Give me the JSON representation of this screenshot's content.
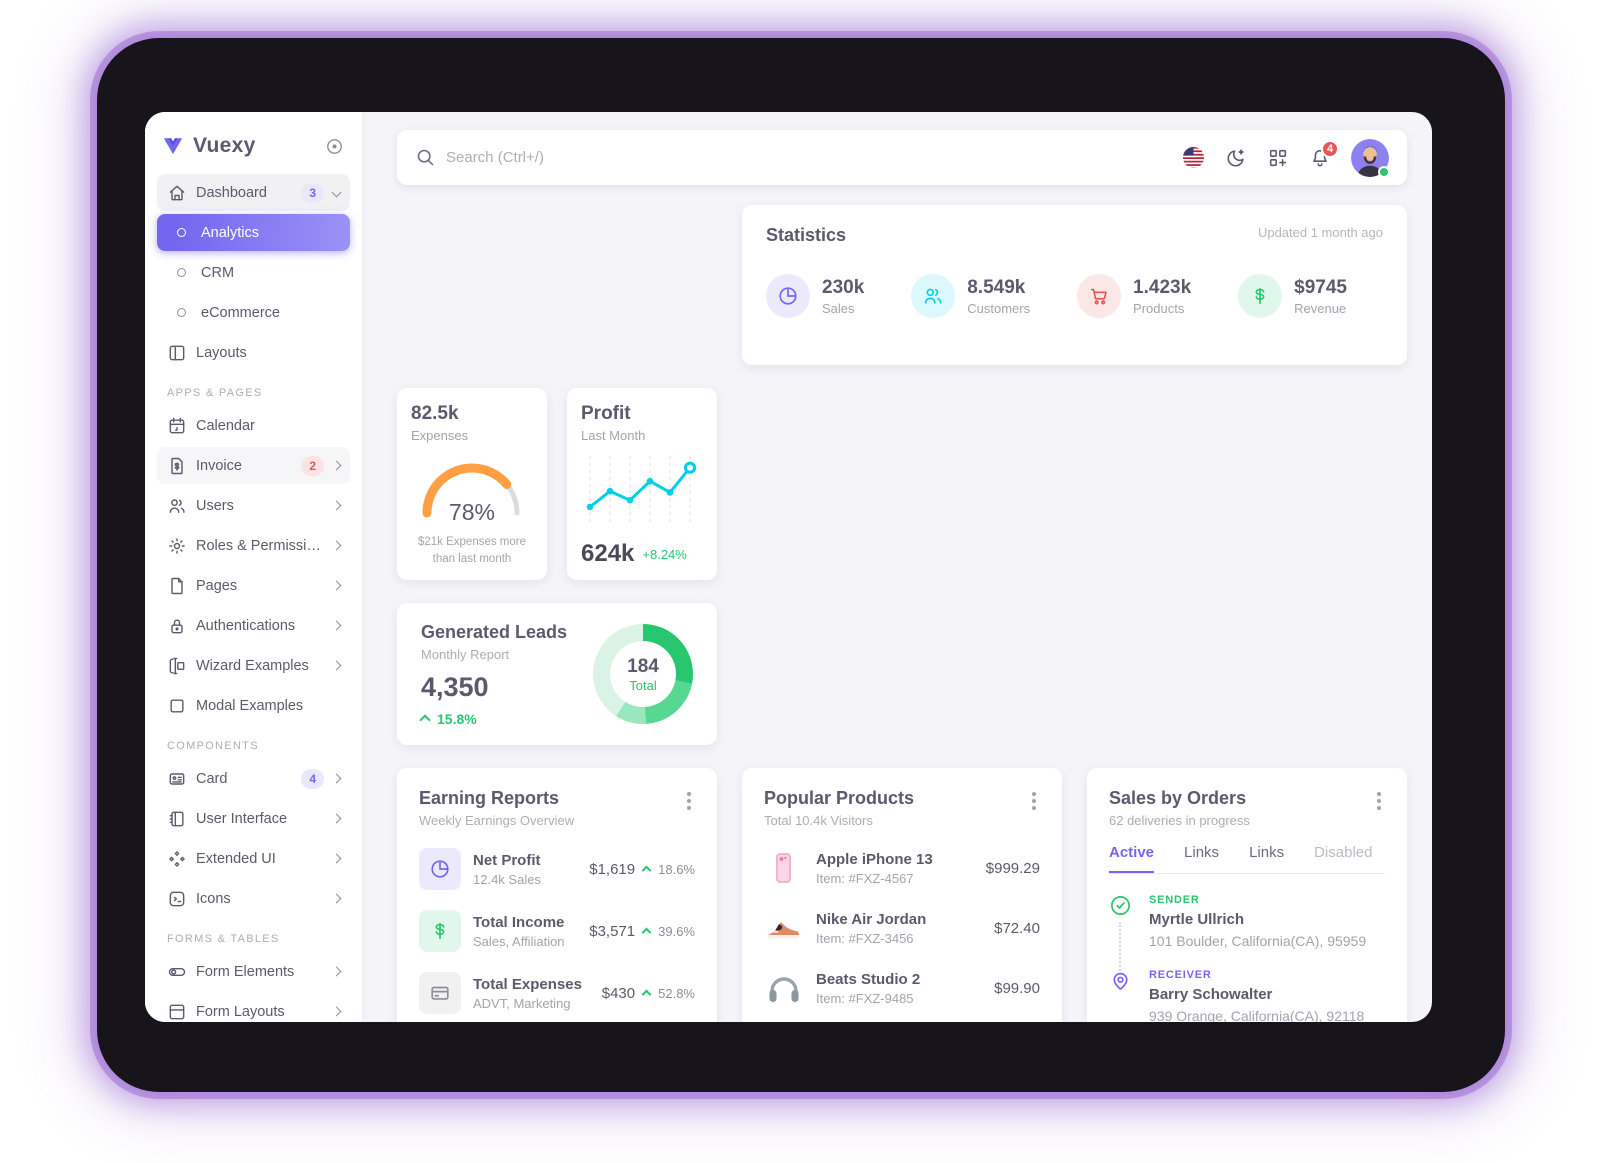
{
  "brand": {
    "name": "Vuexy"
  },
  "colors": {
    "primary": "#7367f0",
    "success": "#28c76f",
    "danger": "#ea5455",
    "warning": "#ff9f43",
    "info": "#00cfe8"
  },
  "sidebar": {
    "sections": [
      {
        "header": "",
        "items": [
          {
            "label": "Dashboard",
            "icon": "home-icon",
            "badge": "3",
            "chevron": "down"
          },
          {
            "label": "Analytics",
            "icon": "circle-icon",
            "state": "active"
          },
          {
            "label": "CRM",
            "icon": "circle-icon"
          },
          {
            "label": "eCommerce",
            "icon": "circle-icon"
          },
          {
            "label": "Layouts",
            "icon": "layout-icon"
          }
        ]
      },
      {
        "header": "APPS & PAGES",
        "items": [
          {
            "label": "Calendar",
            "icon": "calendar-icon"
          },
          {
            "label": "Invoice",
            "icon": "invoice-icon",
            "badge": "2",
            "chevron": "right"
          },
          {
            "label": "Users",
            "icon": "users-icon",
            "chevron": "right"
          },
          {
            "label": "Roles & Permissions",
            "icon": "gear-icon",
            "chevron": "right"
          },
          {
            "label": "Pages",
            "icon": "file-icon",
            "chevron": "right"
          },
          {
            "label": "Authentications",
            "icon": "lock-icon",
            "chevron": "right"
          },
          {
            "label": "Wizard Examples",
            "icon": "wizard-icon",
            "chevron": "right"
          },
          {
            "label": "Modal Examples",
            "icon": "square-icon"
          }
        ]
      },
      {
        "header": "COMPONENTS",
        "items": [
          {
            "label": "Card",
            "icon": "card-icon",
            "badge": "4",
            "chevron": "right"
          },
          {
            "label": "User Interface",
            "icon": "notebook-icon",
            "chevron": "right"
          },
          {
            "label": "Extended UI",
            "icon": "diamonds-icon",
            "chevron": "right"
          },
          {
            "label": "Icons",
            "icon": "terminal-icon",
            "chevron": "right"
          }
        ]
      },
      {
        "header": "FORMS & TABLES",
        "items": [
          {
            "label": "Form Elements",
            "icon": "toggle-icon",
            "chevron": "right"
          },
          {
            "label": "Form Layouts",
            "icon": "form-layout-icon",
            "chevron": "right"
          }
        ]
      }
    ]
  },
  "topbar": {
    "search_placeholder": "Search (Ctrl+/)",
    "notification_count": "4"
  },
  "statistics": {
    "title": "Statistics",
    "updated": "Updated 1 month ago",
    "stats": [
      {
        "value": "230k",
        "label": "Sales",
        "icon": "chart-pie-icon",
        "color": "#7367f0"
      },
      {
        "value": "8.549k",
        "label": "Customers",
        "icon": "users-icon",
        "color": "#00cfe8"
      },
      {
        "value": "1.423k",
        "label": "Products",
        "icon": "cart-icon",
        "color": "#ea5455"
      },
      {
        "value": "$9745",
        "label": "Revenue",
        "icon": "dollar-icon",
        "color": "#28c76f"
      }
    ]
  },
  "expenses": {
    "value": "82.5k",
    "label": "Expenses",
    "percent": "78%",
    "note": "$21k Expenses more than last month"
  },
  "profit": {
    "title": "Profit",
    "subtitle": "Last Month",
    "value": "624k",
    "change": "+8.24%"
  },
  "leads": {
    "title": "Generated Leads",
    "subtitle": "Monthly Report",
    "value": "4,350",
    "change": "15.8%",
    "total_value": "184",
    "total_label": "Total"
  },
  "earning_reports": {
    "title": "Earning Reports",
    "subtitle": "Weekly Earnings Overview",
    "rows": [
      {
        "title": "Net Profit",
        "subtitle": "12.4k Sales",
        "value": "$1,619",
        "change": "18.6%",
        "icon": "chart-pie-icon",
        "tone": "purple"
      },
      {
        "title": "Total Income",
        "subtitle": "Sales, Affiliation",
        "value": "$3,571",
        "change": "39.6%",
        "icon": "dollar-icon",
        "tone": "green"
      },
      {
        "title": "Total Expenses",
        "subtitle": "ADVT, Marketing",
        "value": "$430",
        "change": "52.8%",
        "icon": "credit-card-icon",
        "tone": "gray"
      }
    ]
  },
  "popular_products": {
    "title": "Popular Products",
    "subtitle": "Total 10.4k Visitors",
    "rows": [
      {
        "name": "Apple iPhone 13",
        "item": "Item: #FXZ-4567",
        "price": "$999.29",
        "image": "iphone"
      },
      {
        "name": "Nike Air Jordan",
        "item": "Item: #FXZ-3456",
        "price": "$72.40",
        "image": "sneaker"
      },
      {
        "name": "Beats Studio 2",
        "item": "Item: #FXZ-9485",
        "price": "$99.90",
        "image": "headphones"
      }
    ]
  },
  "sales_by_orders": {
    "title": "Sales by Orders",
    "subtitle": "62 deliveries in progress",
    "tabs": [
      "Active",
      "Links",
      "Links",
      "Disabled"
    ],
    "active_tab": 0,
    "sender": {
      "label": "SENDER",
      "name": "Myrtle Ullrich",
      "address": "101 Boulder, California(CA), 95959"
    },
    "receiver": {
      "label": "RECEIVER",
      "name": "Barry Schowalter",
      "address": "939 Orange, California(CA), 92118"
    }
  },
  "chart_data": [
    {
      "type": "gauge",
      "title": "Expenses",
      "value": 78,
      "max": 100,
      "unit": "%",
      "color": "#ff9f43",
      "track_color": "#dcdbe0"
    },
    {
      "type": "line",
      "title": "Profit Last Month",
      "x": [
        1,
        2,
        3,
        4,
        5,
        6
      ],
      "values": [
        18,
        46,
        30,
        64,
        44,
        88
      ],
      "ylim": [
        0,
        100
      ],
      "color": "#00cfe8",
      "grid": "dashed-vertical",
      "markers": true,
      "last_marker": "open"
    },
    {
      "type": "donut",
      "title": "Generated Leads Total",
      "center_label": "184 Total",
      "segments": [
        {
          "name": "segment-1",
          "value": 28,
          "color": "#28c76f"
        },
        {
          "name": "segment-2",
          "value": 21,
          "color": "#56d792"
        },
        {
          "name": "segment-3",
          "value": 10,
          "color": "#9ae6bd"
        },
        {
          "name": "segment-4",
          "value": 41,
          "color": "#d9f3e5"
        }
      ]
    }
  ]
}
